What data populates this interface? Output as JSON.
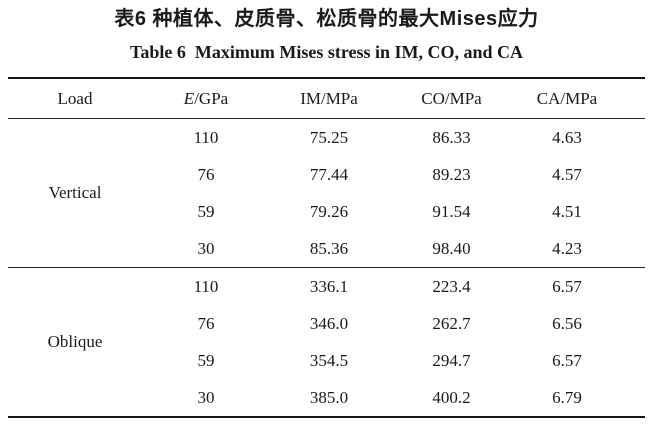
{
  "caption_zh": "表6 种植体、皮质骨、松质骨的最大Mises应力",
  "caption_en": "Table 6  Maximum Mises stress in IM, CO, and CA",
  "colors": {
    "text": "#1a1a1a",
    "rule_heavy": "#161616",
    "rule_light": "#2b2b2b",
    "background": "#ffffff"
  },
  "table": {
    "headers": [
      "Load",
      "E/GPa",
      "IM/MPa",
      "CO/MPa",
      "CA/MPa"
    ],
    "groups": [
      {
        "load": "Vertical",
        "rows": [
          [
            "110",
            "75.25",
            "86.33",
            "4.63"
          ],
          [
            "76",
            "77.44",
            "89.23",
            "4.57"
          ],
          [
            "59",
            "79.26",
            "91.54",
            "4.51"
          ],
          [
            "30",
            "85.36",
            "98.40",
            "4.23"
          ]
        ]
      },
      {
        "load": "Oblique",
        "rows": [
          [
            "110",
            "336.1",
            "223.4",
            "6.57"
          ],
          [
            "76",
            "346.0",
            "262.7",
            "6.56"
          ],
          [
            "59",
            "354.5",
            "294.7",
            "6.57"
          ],
          [
            "30",
            "385.0",
            "400.2",
            "6.79"
          ]
        ]
      }
    ]
  },
  "chart_data": {
    "type": "table",
    "title": "Table 6 Maximum Mises stress in IM, CO, and CA",
    "columns": [
      "Load",
      "E/GPa",
      "IM/MPa",
      "CO/MPa",
      "CA/MPa"
    ],
    "rows": [
      [
        "Vertical",
        110,
        75.25,
        86.33,
        4.63
      ],
      [
        "Vertical",
        76,
        77.44,
        89.23,
        4.57
      ],
      [
        "Vertical",
        59,
        79.26,
        91.54,
        4.51
      ],
      [
        "Vertical",
        30,
        85.36,
        98.4,
        4.23
      ],
      [
        "Oblique",
        110,
        336.1,
        223.4,
        6.57
      ],
      [
        "Oblique",
        76,
        346.0,
        262.7,
        6.56
      ],
      [
        "Oblique",
        59,
        354.5,
        294.7,
        6.57
      ],
      [
        "Oblique",
        30,
        385.0,
        400.2,
        6.79
      ]
    ]
  }
}
